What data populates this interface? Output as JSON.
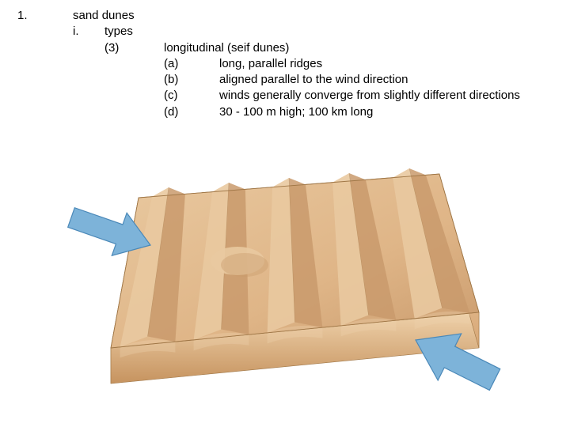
{
  "outline": {
    "num": "1.",
    "title": "sand dunes",
    "sub_i": "i.",
    "sub_i_label": "types",
    "sub_3": "(3)",
    "heading": "longitudinal (seif dunes)",
    "a": "(a)",
    "a_text": "long, parallel ridges",
    "b": "(b)",
    "b_text": "aligned parallel to the wind direction",
    "c": "(c)",
    "c_text": "winds generally converge from slightly different directions",
    "d": "(d)",
    "d_text": "30 - 100 m high; 100 km long"
  },
  "diagram": {
    "type": "infographic",
    "description": "3D perspective block of sand with longitudinal (seif) dune ridges; two blue arrows show wind converging from slightly different directions",
    "colors": {
      "sand_top_light": "#e9c9a0",
      "sand_top_mid": "#dfb587",
      "sand_top_shadow": "#c99a6c",
      "sand_side_light": "#f1d7b2",
      "sand_side_dark": "#d8a877",
      "sand_front_light": "#efd2ab",
      "sand_front_dark": "#c6935f",
      "edge_outline": "#a07747",
      "arrow_fill": "#7db3d9",
      "arrow_stroke": "#4a88b8",
      "background": "#ffffff"
    },
    "ridges": 5,
    "arrows": [
      {
        "from": "upper-left",
        "angle_deg": 20
      },
      {
        "from": "lower-right",
        "angle_deg": 200
      }
    ]
  }
}
